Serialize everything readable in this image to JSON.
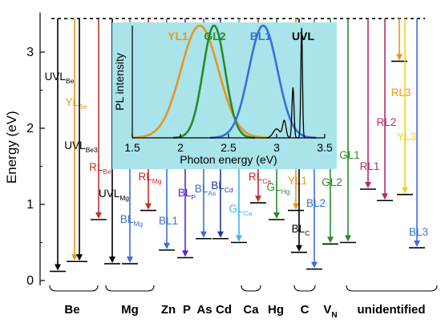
{
  "chart_data": [
    {
      "type": "level-diagram",
      "ylabel": "Energy (eV)",
      "ylim": [
        0,
        3.5
      ],
      "yticks": [
        0,
        1,
        2,
        3
      ],
      "band_edge": 3.44,
      "levels": [
        {
          "name": "UVL",
          "sub": "Be",
          "group": "Be",
          "energy": 0.12,
          "color": "#000000"
        },
        {
          "name": "YL",
          "sub": "Be",
          "group": "Be",
          "energy": 0.25,
          "color": "#e8961e"
        },
        {
          "name": "UVL",
          "sub": "Be3",
          "group": "Be",
          "energy": 0.25,
          "color": "#000000"
        },
        {
          "name": "RL",
          "sub": "Be",
          "group": "Be",
          "energy": 0.8,
          "color": "#c0302a"
        },
        {
          "name": "UVL",
          "sub": "Mg",
          "group": "Mg",
          "energy": 0.22,
          "color": "#000000"
        },
        {
          "name": "BL",
          "sub": "Mg",
          "group": "Mg",
          "energy": 0.22,
          "color": "#3a6fd8"
        },
        {
          "name": "RL",
          "sub": "Mg",
          "group": "Mg",
          "energy": 0.92,
          "color": "#c0302a"
        },
        {
          "name": "BL1",
          "sub": "",
          "group": "Zn",
          "energy": 0.4,
          "color": "#3a6fd8"
        },
        {
          "name": "BL",
          "sub": "P",
          "group": "P",
          "energy": 0.3,
          "color": "#5b1fd6"
        },
        {
          "name": "BL",
          "sub": "As",
          "group": "As",
          "energy": 0.55,
          "color": "#3a6fd8"
        },
        {
          "name": "BL",
          "sub": "Cd",
          "group": "Cd",
          "energy": 0.55,
          "color": "#1f3aa0"
        },
        {
          "name": "GL",
          "sub": "Ca",
          "group": "Ca",
          "energy": 0.5,
          "color": "#3fb4ea"
        },
        {
          "name": "RL",
          "sub": "Ca",
          "group": "Ca",
          "energy": 1.02,
          "color": "#c0302a"
        },
        {
          "name": "GL",
          "sub": "Hg",
          "group": "Hg",
          "energy": 0.8,
          "color": "#2a8a2a"
        },
        {
          "name": "YL1",
          "sub": "",
          "group": "C",
          "energy": 0.92,
          "color": "#e8961e"
        },
        {
          "name": "BL",
          "sub": "C",
          "group": "C",
          "energy": 0.37,
          "color": "#000000"
        },
        {
          "name": "BL2",
          "sub": "",
          "group": "C",
          "energy": 0.15,
          "color": "#3a6fd8"
        },
        {
          "name": "GL2",
          "sub": "",
          "group": "VN",
          "energy": 0.48,
          "color": "#2a8a2a"
        },
        {
          "name": "GL1",
          "sub": "",
          "group": "unidentified",
          "energy": 0.5,
          "color": "#2a8a2a"
        },
        {
          "name": "RL1",
          "sub": "",
          "group": "unidentified",
          "energy": 1.2,
          "color": "#b0306a"
        },
        {
          "name": "RL2",
          "sub": "",
          "group": "unidentified",
          "energy": 1.05,
          "color": "#b0306a"
        },
        {
          "name": "RL3",
          "sub": "",
          "group": "unidentified",
          "energy": 2.88,
          "color": "#e8961e"
        },
        {
          "name": "YL3",
          "sub": "",
          "group": "unidentified",
          "energy": 1.13,
          "color": "#f0d020"
        },
        {
          "name": "BL3",
          "sub": "",
          "group": "unidentified",
          "energy": 0.43,
          "color": "#3a6fd8"
        }
      ],
      "groups": [
        "Be",
        "Mg",
        "Zn",
        "P",
        "As",
        "Cd",
        "Ca",
        "Hg",
        "C",
        "VN",
        "unidentified"
      ]
    },
    {
      "type": "line",
      "xlabel": "Photon energy (eV)",
      "ylabel": "PL intensity",
      "xlim": [
        1.5,
        3.5
      ],
      "xticks": [
        1.5,
        2,
        2.5,
        3,
        3.5
      ],
      "series": [
        {
          "name": "YL1",
          "color": "#e8961e",
          "peak": 2.2,
          "fwhm": 0.46
        },
        {
          "name": "GL2",
          "color": "#2a8a2a",
          "peak": 2.35,
          "fwhm": 0.27
        },
        {
          "name": "BL1",
          "color": "#3a6fd8",
          "peak": 2.86,
          "fwhm": 0.35
        },
        {
          "name": "UVL",
          "color": "#000000",
          "peak": 3.26,
          "fwhm": 0.05
        }
      ]
    }
  ],
  "labels": {
    "vn_main": "V",
    "vn_sub": "N"
  },
  "colors": {
    "inset_background": "#a8e4ea",
    "band_edge": "#000000"
  }
}
